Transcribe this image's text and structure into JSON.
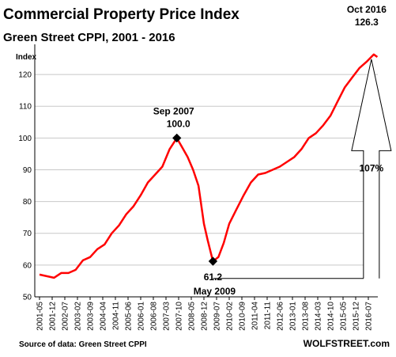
{
  "chart_data": {
    "type": "line",
    "title": "Commercial Property Price Index",
    "subtitle": "Green Street CPPI, 2001 - 2016",
    "ylabel": "Index",
    "xlabel": "",
    "ylim": [
      50,
      128
    ],
    "yticks": [
      50,
      60,
      70,
      80,
      90,
      100,
      110,
      120
    ],
    "grid": "horizontal",
    "legend": "none",
    "line_color": "#ff0000",
    "x_tick_labels": [
      "2001-05",
      "2001-12",
      "2002-07",
      "2003-02",
      "2003-09",
      "2004-04",
      "2004-11",
      "2005-06",
      "2006-01",
      "2006-08",
      "2007-03",
      "2007-10",
      "2008-05",
      "2008-12",
      "2009-07",
      "2010-02",
      "2010-09",
      "2011-04",
      "2011-11",
      "2012-06",
      "2013-01",
      "2013-08",
      "2014-03",
      "2014-10",
      "2015-05",
      "2015-12",
      "2016-07"
    ],
    "series": [
      {
        "x": [
          "2001-05",
          "2001-09",
          "2002-01",
          "2002-05",
          "2002-09",
          "2003-01",
          "2003-05",
          "2003-09",
          "2004-01",
          "2004-05",
          "2004-09",
          "2005-01",
          "2005-05",
          "2005-09",
          "2006-01",
          "2006-05",
          "2006-09",
          "2007-01",
          "2007-05",
          "2007-09",
          "2007-12",
          "2008-03",
          "2008-06",
          "2008-09",
          "2008-12",
          "2009-02",
          "2009-05",
          "2009-08",
          "2009-11",
          "2010-02",
          "2010-06",
          "2010-10",
          "2011-02",
          "2011-06",
          "2011-10",
          "2012-02",
          "2012-06",
          "2012-10",
          "2013-02",
          "2013-06",
          "2013-10",
          "2014-02",
          "2014-06",
          "2014-10",
          "2015-02",
          "2015-06",
          "2015-10",
          "2016-02",
          "2016-06",
          "2016-10",
          "2016-12"
        ],
        "values": [
          57.0,
          56.5,
          56.0,
          57.5,
          57.5,
          58.5,
          61.5,
          62.5,
          65.0,
          66.5,
          70.0,
          72.5,
          76.0,
          78.5,
          82.0,
          86.0,
          88.5,
          91.0,
          96.5,
          100.0,
          97.0,
          94.0,
          90.0,
          85.0,
          73.0,
          68.0,
          61.2,
          62.5,
          67.0,
          73.0,
          77.5,
          82.0,
          86.0,
          88.5,
          89.0,
          90.0,
          91.0,
          92.5,
          94.0,
          96.5,
          100.0,
          101.5,
          104.0,
          107.0,
          111.5,
          116.0,
          119.0,
          122.0,
          124.0,
          126.3,
          125.5
        ]
      }
    ],
    "annotations": {
      "peak_label": "Sep 2007",
      "peak_value": "100.0",
      "trough_value": "61.2",
      "trough_label": "May 2009",
      "latest_label": "Oct 2016",
      "latest_value": "126.3",
      "gain_label": "107%",
      "gain_color": "#ff0000"
    },
    "source": "Source of data: Green Street CPPI",
    "brand": "WOLFSTREET.com"
  }
}
